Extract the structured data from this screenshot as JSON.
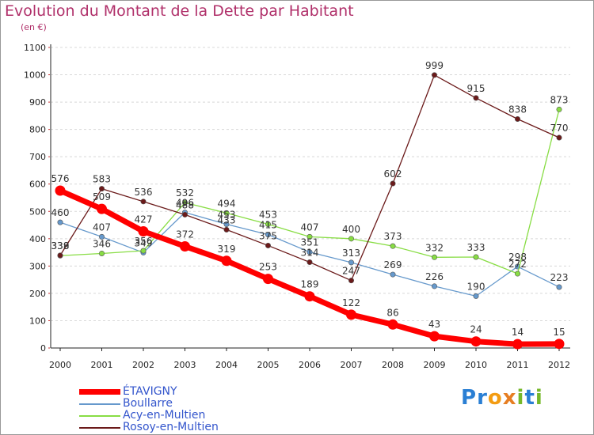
{
  "header": {
    "title": "Evolution du Montant de la Dette par Habitant",
    "unit": "(en €)"
  },
  "logo": {
    "text": "Proxiti",
    "letters": [
      "P",
      "r",
      "o",
      "x",
      "i",
      "t",
      "i"
    ]
  },
  "colors": {
    "title": "#b0306a",
    "axis": "#222222",
    "grid": "#cc3333",
    "legend_text": "#3355cc",
    "logo": [
      "#2a7fd4",
      "#2a7fd4",
      "#f39c12",
      "#e67e22",
      "#76b82a",
      "#2a7fd4",
      "#76b82a"
    ]
  },
  "chart_data": {
    "type": "line",
    "title": "Evolution du Montant de la Dette par Habitant",
    "ylabel": "(en €)",
    "xlabel": "",
    "ylim": [
      0,
      1100
    ],
    "y_ticks": [
      0,
      100,
      200,
      300,
      400,
      500,
      600,
      700,
      800,
      900,
      1000,
      1100
    ],
    "categories": [
      "2000",
      "2001",
      "2002",
      "2003",
      "2004",
      "2005",
      "2006",
      "2007",
      "2008",
      "2009",
      "2010",
      "2011",
      "2012"
    ],
    "series": [
      {
        "name": "ÉTAVIGNY",
        "color": "#ff0000",
        "emphasis": true,
        "values": [
          576,
          509,
          427,
          372,
          319,
          253,
          189,
          122,
          86,
          43,
          24,
          14,
          15
        ]
      },
      {
        "name": "Boullarre",
        "color": "#6699cc",
        "values": [
          460,
          407,
          349,
          496,
          453,
          415,
          351,
          313,
          269,
          226,
          190,
          298,
          223
        ]
      },
      {
        "name": "Acy-en-Multien",
        "color": "#88dd44",
        "values": [
          338,
          346,
          356,
          532,
          494,
          453,
          407,
          400,
          373,
          332,
          333,
          272,
          873
        ]
      },
      {
        "name": "Rosoy-en-Multien",
        "color": "#6b1a1a",
        "values": [
          339,
          583,
          536,
          488,
          433,
          375,
          314,
          247,
          602,
          999,
          915,
          838,
          770
        ]
      }
    ],
    "grid": "horizontal-dashed",
    "legend_position": "bottom-left"
  }
}
